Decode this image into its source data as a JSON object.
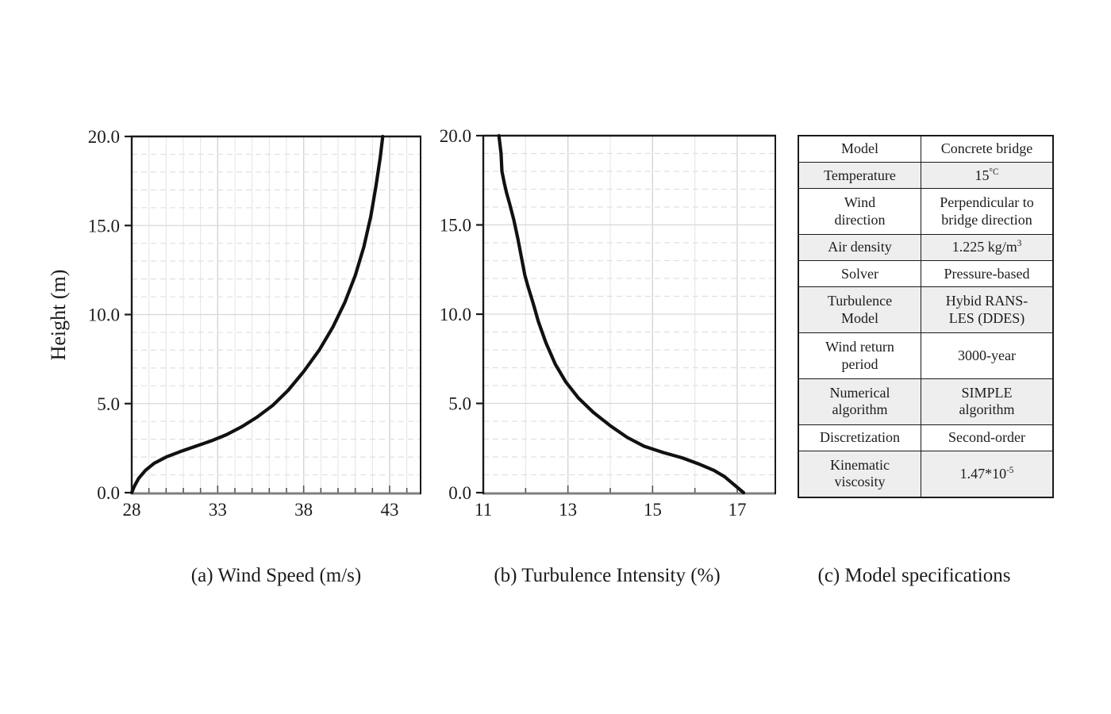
{
  "figure": {
    "captions": {
      "a": "(a) Wind Speed (m/s)",
      "b": "(b) Turbulence Intensity (%)",
      "c": "(c) Model specifications"
    },
    "shared_ylabel": "Height (m)"
  },
  "chart_data": [
    {
      "type": "line",
      "caption": "(a) Wind Speed (m/s)",
      "xlabel": "Wind Speed (m/s)",
      "ylabel": "Height (m)",
      "xlim": [
        28,
        44.8
      ],
      "ylim": [
        0,
        20
      ],
      "x_major_ticks": [
        28,
        33,
        38,
        43
      ],
      "x_minor_step": 1,
      "y_major_ticks": [
        0,
        5,
        10,
        15,
        20
      ],
      "y_tick_labels": [
        "0.0",
        "5.0",
        "10.0",
        "15.0",
        "20.0"
      ],
      "y_minor_step": 1,
      "grid": "vertical solid every 1, horizontal dashed every 1, solid every 5",
      "legend": "none",
      "series": [
        {
          "name": "wind-speed-profile",
          "color": "#111111",
          "points": [
            [
              28.0,
              0.0
            ],
            [
              28.15,
              0.35
            ],
            [
              28.4,
              0.8
            ],
            [
              28.8,
              1.25
            ],
            [
              29.3,
              1.65
            ],
            [
              30.0,
              2.0
            ],
            [
              30.8,
              2.3
            ],
            [
              31.7,
              2.6
            ],
            [
              32.6,
              2.9
            ],
            [
              33.5,
              3.25
            ],
            [
              34.4,
              3.7
            ],
            [
              35.3,
              4.25
            ],
            [
              36.2,
              4.9
            ],
            [
              37.1,
              5.75
            ],
            [
              38.0,
              6.8
            ],
            [
              38.9,
              8.0
            ],
            [
              39.7,
              9.3
            ],
            [
              40.4,
              10.7
            ],
            [
              41.0,
              12.2
            ],
            [
              41.5,
              13.8
            ],
            [
              41.9,
              15.5
            ],
            [
              42.2,
              17.2
            ],
            [
              42.45,
              18.8
            ],
            [
              42.6,
              20.0
            ]
          ]
        }
      ]
    },
    {
      "type": "line",
      "caption": "(b) Turbulence Intensity (%)",
      "xlabel": "Turbulence Intensity (%)",
      "ylabel": "Height (m)",
      "xlim": [
        11,
        17.9
      ],
      "ylim": [
        0,
        20
      ],
      "x_major_ticks": [
        11,
        13,
        15,
        17
      ],
      "x_minor_step": 1,
      "y_major_ticks": [
        0,
        5,
        10,
        15,
        20
      ],
      "y_tick_labels": [
        "0.0",
        "5.0",
        "10.0",
        "15.0",
        "20.0"
      ],
      "y_minor_step": 1,
      "grid": "vertical solid every 1, horizontal dashed every 1, solid every 5",
      "legend": "none",
      "series": [
        {
          "name": "turbulence-intensity-profile",
          "color": "#111111",
          "points": [
            [
              17.15,
              0.0
            ],
            [
              16.95,
              0.4
            ],
            [
              16.7,
              0.9
            ],
            [
              16.45,
              1.25
            ],
            [
              16.1,
              1.6
            ],
            [
              15.7,
              1.95
            ],
            [
              15.25,
              2.25
            ],
            [
              14.8,
              2.6
            ],
            [
              14.4,
              3.1
            ],
            [
              14.0,
              3.75
            ],
            [
              13.6,
              4.5
            ],
            [
              13.25,
              5.3
            ],
            [
              12.95,
              6.2
            ],
            [
              12.7,
              7.2
            ],
            [
              12.48,
              8.4
            ],
            [
              12.3,
              9.6
            ],
            [
              12.18,
              10.6
            ],
            [
              12.05,
              11.6
            ],
            [
              11.98,
              12.2
            ],
            [
              11.9,
              13.2
            ],
            [
              11.82,
              14.2
            ],
            [
              11.72,
              15.3
            ],
            [
              11.62,
              16.2
            ],
            [
              11.55,
              16.8
            ],
            [
              11.5,
              17.3
            ],
            [
              11.44,
              18.0
            ],
            [
              11.42,
              19.0
            ],
            [
              11.37,
              20.0
            ]
          ]
        }
      ]
    }
  ],
  "table": {
    "title": "Model specifications",
    "shaded_rows": [
      2,
      4,
      6,
      8,
      10
    ],
    "shade_color": "#eeeeee",
    "rows": [
      {
        "label": "Model",
        "value": [
          {
            "t": "Concrete bridge"
          }
        ]
      },
      {
        "label": "Temperature",
        "value": [
          {
            "t": "15"
          },
          {
            "t": "°C",
            "sup": true
          }
        ]
      },
      {
        "label": "Wind\ndirection",
        "value": [
          {
            "t": "Perpendicular to\nbridge direction"
          }
        ]
      },
      {
        "label": "Air density",
        "value": [
          {
            "t": "1.225 kg/m"
          },
          {
            "t": "3",
            "sup": true
          }
        ]
      },
      {
        "label": "Solver",
        "value": [
          {
            "t": "Pressure-based"
          }
        ]
      },
      {
        "label": "Turbulence\nModel",
        "value": [
          {
            "t": "Hybid RANS-\nLES (DDES)"
          }
        ]
      },
      {
        "label": "Wind return\nperiod",
        "value": [
          {
            "t": "3000-year"
          }
        ]
      },
      {
        "label": "Numerical\nalgorithm",
        "value": [
          {
            "t": "SIMPLE\nalgorithm"
          }
        ]
      },
      {
        "label": "Discretization",
        "value": [
          {
            "t": "Second-order"
          }
        ]
      },
      {
        "label": "Kinematic\nviscosity",
        "value": [
          {
            "t": "1.47*10"
          },
          {
            "t": "-5",
            "sup": true
          }
        ]
      }
    ]
  },
  "style_colors": {
    "curve": "#111111",
    "frame_dark": "#1a1a1a",
    "frame_bottom": "#7f7f7f",
    "grid_minor_v": "#e6e6e6",
    "grid_major_v": "#d4d4d4",
    "grid_dashed_h": "#e0e0e0",
    "grid_solid_h": "#d9d9d9",
    "tick_minor": "#555555",
    "text": "#1c1c1c"
  }
}
